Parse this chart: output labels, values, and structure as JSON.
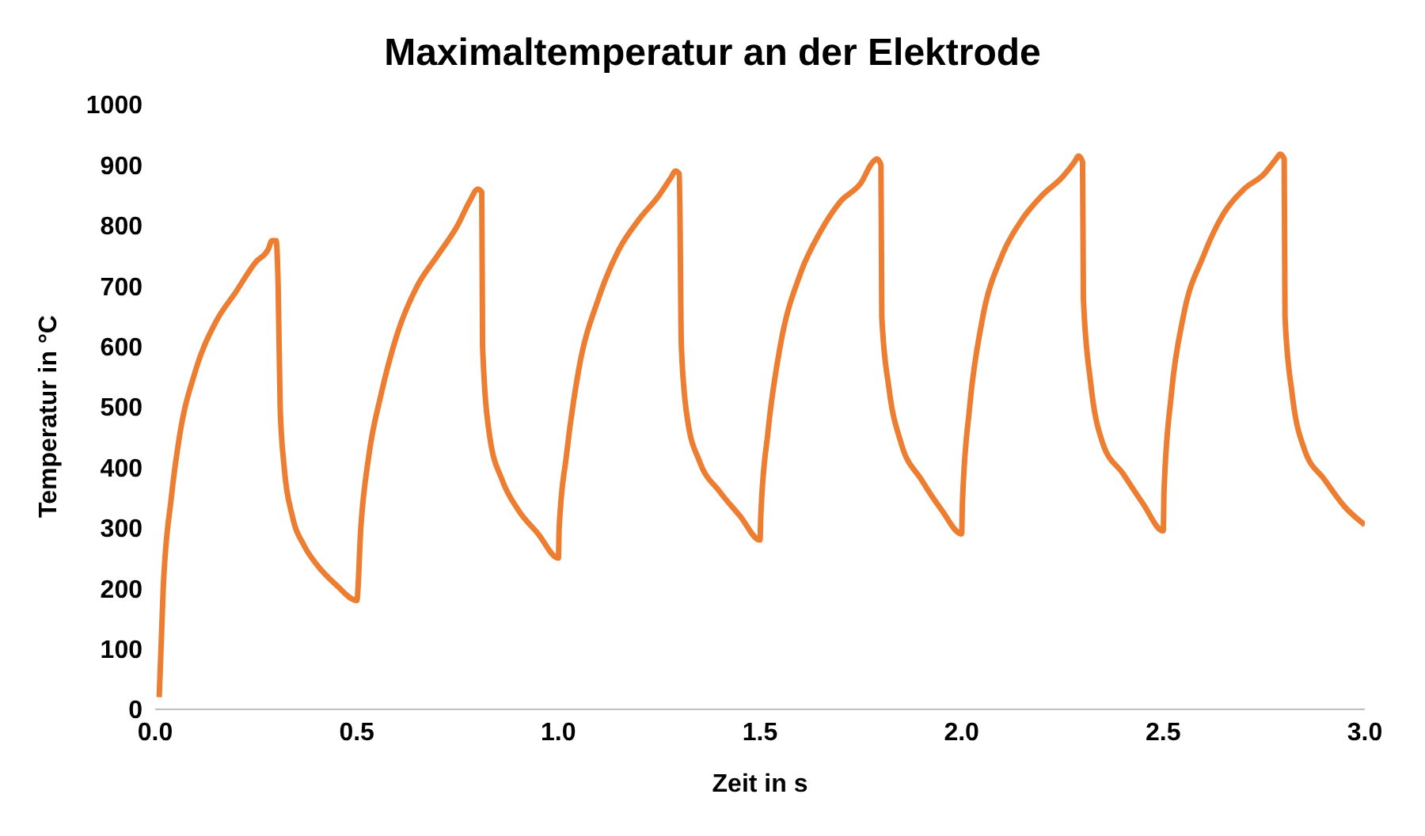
{
  "chart_data": {
    "type": "line",
    "title": "Maximaltemperatur an der Elektrode",
    "xlabel": "Zeit in s",
    "ylabel": "Temperatur in °C",
    "xlim": [
      0,
      3
    ],
    "xticks": [
      {
        "value": 0,
        "label": "0.0"
      },
      {
        "value": 0.5,
        "label": "0.5"
      },
      {
        "value": 1,
        "label": "1.0"
      },
      {
        "value": 1.5,
        "label": "1.5"
      },
      {
        "value": 2,
        "label": "2.0"
      },
      {
        "value": 2.5,
        "label": "2.5"
      },
      {
        "value": 3,
        "label": "3.0"
      }
    ],
    "ylim": [
      0,
      1000
    ],
    "yticks": [
      0,
      100,
      200,
      300,
      400,
      500,
      600,
      700,
      800,
      900,
      1000
    ],
    "grid": false,
    "legend": false,
    "marker": "none",
    "line_style": "solid",
    "series": [
      {
        "color": "#ed7d31",
        "x": [
          0.01,
          0.02,
          0.04,
          0.06,
          0.1,
          0.15,
          0.2,
          0.25,
          0.28,
          0.29,
          0.3,
          0.305,
          0.31,
          0.32,
          0.34,
          0.37,
          0.4,
          0.45,
          0.5,
          0.51,
          0.53,
          0.56,
          0.6,
          0.65,
          0.7,
          0.75,
          0.78,
          0.8,
          0.81,
          0.812,
          0.83,
          0.86,
          0.9,
          0.95,
          1.0,
          1.002,
          1.02,
          1.05,
          1.1,
          1.15,
          1.2,
          1.25,
          1.28,
          1.29,
          1.3,
          1.305,
          1.32,
          1.35,
          1.4,
          1.45,
          1.5,
          1.502,
          1.52,
          1.55,
          1.6,
          1.65,
          1.7,
          1.75,
          1.78,
          1.79,
          1.8,
          1.802,
          1.82,
          1.85,
          1.9,
          1.95,
          2.0,
          2.002,
          2.02,
          2.05,
          2.1,
          2.15,
          2.2,
          2.25,
          2.28,
          2.29,
          2.3,
          2.302,
          2.32,
          2.35,
          2.4,
          2.45,
          2.5,
          2.502,
          2.52,
          2.55,
          2.6,
          2.65,
          2.7,
          2.75,
          2.78,
          2.79,
          2.8,
          2.802,
          2.82,
          2.85,
          2.9,
          2.95,
          3.0
        ],
        "values": [
          20,
          200,
          350,
          450,
          560,
          640,
          690,
          740,
          760,
          775,
          775,
          700,
          500,
          400,
          320,
          270,
          240,
          205,
          180,
          300,
          420,
          520,
          620,
          700,
          750,
          800,
          840,
          860,
          855,
          600,
          450,
          380,
          330,
          290,
          250,
          300,
          420,
          560,
          680,
          760,
          810,
          850,
          880,
          890,
          885,
          600,
          480,
          410,
          360,
          320,
          280,
          320,
          460,
          600,
          720,
          790,
          840,
          870,
          905,
          910,
          900,
          650,
          530,
          440,
          380,
          330,
          290,
          340,
          500,
          640,
          750,
          810,
          850,
          880,
          905,
          915,
          905,
          680,
          540,
          440,
          390,
          340,
          295,
          360,
          520,
          650,
          750,
          820,
          860,
          885,
          910,
          918,
          910,
          650,
          520,
          430,
          380,
          335,
          305
        ]
      }
    ]
  }
}
